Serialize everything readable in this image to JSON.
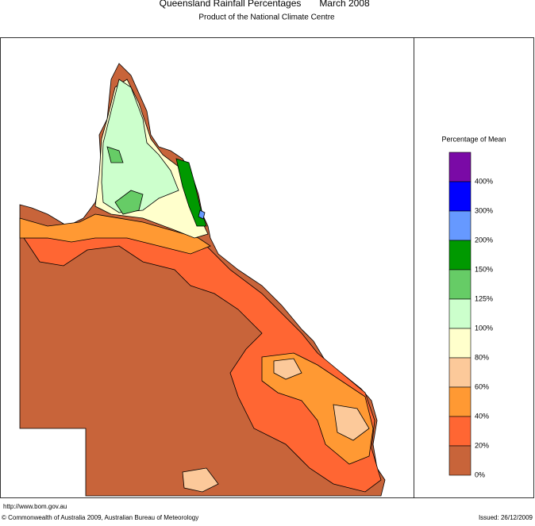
{
  "header": {
    "title": "Queensland Rainfall Percentages",
    "period": "March 2008",
    "subtitle": "Product of the National Climate Centre"
  },
  "legend": {
    "title": "Percentage of Mean",
    "bins": [
      "#7a0aa6",
      "#0000ff",
      "#6699ff",
      "#009900",
      "#66cc66",
      "#ccffcc",
      "#ffffcc",
      "#fcc99a",
      "#ff9933",
      "#ff6633",
      "#c8643a"
    ],
    "labels": [
      "400%",
      "300%",
      "200%",
      "150%",
      "125%",
      "100%",
      "80%",
      "60%",
      "40%",
      "20%",
      "0%"
    ]
  },
  "footer": {
    "url": "http://www.bom.gov.au",
    "copyright": "© Commonwealth of Australia 2009, Australian Bureau of Meteorology",
    "issued": "Issued: 26/12/2009"
  }
}
